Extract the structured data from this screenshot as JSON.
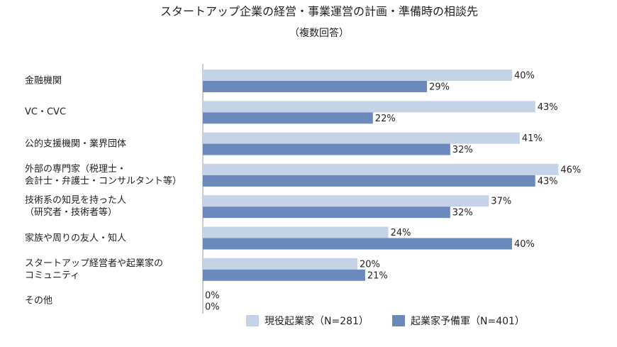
{
  "chart_data": {
    "type": "bar",
    "orientation": "horizontal",
    "title": "スタートアップ企業の経営・事業運営の計画・準備時の相談先",
    "subtitle": "（複数回答）",
    "categories": [
      "金融機関",
      "VC・CVC",
      "公的支援機関・業界団体",
      "外部の専門家（税理士・\n会計士・弁護士・コンサルタント等）",
      "技術系の知見を持った人\n（研究者・技術者等）",
      "家族や周りの友人・知人",
      "スタートアップ経営者や起業家の\nコミュニティ",
      "その他"
    ],
    "series": [
      {
        "name": "現役起業家（N=281）",
        "color": "#c5d3e6",
        "values": [
          40,
          43,
          41,
          46,
          37,
          24,
          20,
          0
        ],
        "value_labels": [
          "40%",
          "43%",
          "41%",
          "46%",
          "37%",
          "24%",
          "20%",
          "0%"
        ]
      },
      {
        "name": "起業家予備軍（N=401）",
        "color": "#6b89bb",
        "values": [
          29,
          22,
          32,
          43,
          32,
          40,
          21,
          0
        ],
        "value_labels": [
          "29%",
          "22%",
          "32%",
          "43%",
          "32%",
          "40%",
          "21%",
          "0%"
        ]
      }
    ]
  }
}
